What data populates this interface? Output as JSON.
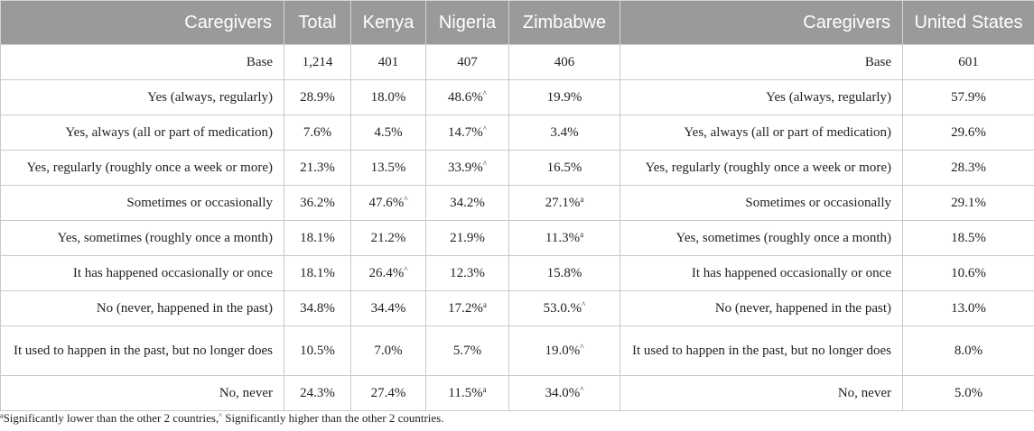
{
  "headers": [
    "Caregivers",
    "Total",
    "Kenya",
    "Nigeria",
    "Zimbabwe",
    "Caregivers",
    "United States"
  ],
  "rows": [
    {
      "label": "Base",
      "total": {
        "v": "1,214",
        "s": ""
      },
      "kenya": {
        "v": "401",
        "s": ""
      },
      "nigeria": {
        "v": "407",
        "s": ""
      },
      "zimbabwe": {
        "v": "406",
        "s": ""
      },
      "us_label": "Base",
      "us": "601"
    },
    {
      "label": "Yes (always, regularly)",
      "total": {
        "v": "28.9%",
        "s": ""
      },
      "kenya": {
        "v": "18.0%",
        "s": ""
      },
      "nigeria": {
        "v": "48.6%",
        "s": "^"
      },
      "zimbabwe": {
        "v": "19.9%",
        "s": ""
      },
      "us_label": "Yes (always, regularly)",
      "us": "57.9%"
    },
    {
      "label": "Yes, always (all or part of medication)",
      "total": {
        "v": "7.6%",
        "s": ""
      },
      "kenya": {
        "v": "4.5%",
        "s": ""
      },
      "nigeria": {
        "v": "14.7%",
        "s": "^"
      },
      "zimbabwe": {
        "v": "3.4%",
        "s": ""
      },
      "us_label": "Yes, always (all or part of medication)",
      "us": "29.6%"
    },
    {
      "label": "Yes, regularly (roughly once a week or more)",
      "total": {
        "v": "21.3%",
        "s": ""
      },
      "kenya": {
        "v": "13.5%",
        "s": ""
      },
      "nigeria": {
        "v": "33.9%",
        "s": "^"
      },
      "zimbabwe": {
        "v": "16.5%",
        "s": ""
      },
      "us_label": "Yes, regularly (roughly once a week or more)",
      "us": "28.3%"
    },
    {
      "label": "Sometimes or occasionally",
      "total": {
        "v": "36.2%",
        "s": ""
      },
      "kenya": {
        "v": "47.6%",
        "s": "^"
      },
      "nigeria": {
        "v": "34.2%",
        "s": ""
      },
      "zimbabwe": {
        "v": "27.1%",
        "s": "a"
      },
      "us_label": "Sometimes or occasionally",
      "us": "29.1%"
    },
    {
      "label": "Yes, sometimes (roughly once a month)",
      "total": {
        "v": "18.1%",
        "s": ""
      },
      "kenya": {
        "v": "21.2%",
        "s": ""
      },
      "nigeria": {
        "v": "21.9%",
        "s": ""
      },
      "zimbabwe": {
        "v": "11.3%",
        "s": "a"
      },
      "us_label": "Yes, sometimes (roughly once a month)",
      "us": "18.5%"
    },
    {
      "label": "It has happened occasionally or once",
      "total": {
        "v": "18.1%",
        "s": ""
      },
      "kenya": {
        "v": "26.4%",
        "s": "^"
      },
      "nigeria": {
        "v": "12.3%",
        "s": ""
      },
      "zimbabwe": {
        "v": "15.8%",
        "s": ""
      },
      "us_label": "It has happened occasionally or once",
      "us": "10.6%"
    },
    {
      "label": "No (never, happened in the past)",
      "total": {
        "v": "34.8%",
        "s": ""
      },
      "kenya": {
        "v": "34.4%",
        "s": ""
      },
      "nigeria": {
        "v": "17.2%",
        "s": "a"
      },
      "zimbabwe": {
        "v": "53.0.%",
        "s": "^"
      },
      "us_label": "No (never, happened in the past)",
      "us": "13.0%"
    },
    {
      "label": "It used to happen in the past, but no longer does",
      "total": {
        "v": "10.5%",
        "s": ""
      },
      "kenya": {
        "v": "7.0%",
        "s": ""
      },
      "nigeria": {
        "v": "5.7%",
        "s": ""
      },
      "zimbabwe": {
        "v": "19.0%",
        "s": "^"
      },
      "us_label": "It used to happen in the past, but no longer does",
      "us": "8.0%"
    },
    {
      "label": "No, never",
      "total": {
        "v": "24.3%",
        "s": ""
      },
      "kenya": {
        "v": "27.4%",
        "s": ""
      },
      "nigeria": {
        "v": "11.5%",
        "s": "a"
      },
      "zimbabwe": {
        "v": "34.0%",
        "s": "^"
      },
      "us_label": "No, never",
      "us": "5.0%"
    }
  ],
  "footnote": {
    "a_mark": "a",
    "a_text": "Significantly lower than the other 2 countries,",
    "hat_mark": "^",
    "hat_text": " Significantly higher than the other 2 countries."
  }
}
